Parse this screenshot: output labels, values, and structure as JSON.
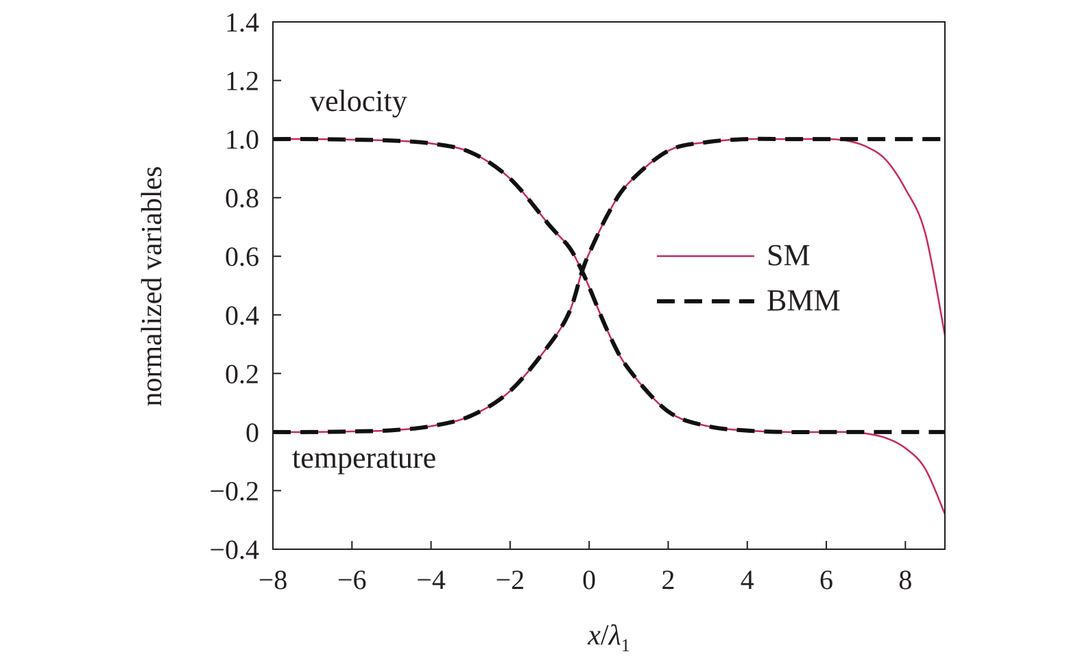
{
  "chart_data": {
    "type": "line",
    "xlabel": "x/λ1",
    "xlabel_parts": {
      "var": "x",
      "slash": "/",
      "sym": "λ",
      "sub": "1"
    },
    "ylabel": "normalized variables",
    "xlim": [
      -8,
      9
    ],
    "ylim": [
      -0.4,
      1.4
    ],
    "x_ticks": [
      -8,
      -6,
      -4,
      -2,
      0,
      2,
      4,
      6,
      8
    ],
    "x_tick_labels": [
      "−8",
      "−6",
      "−4",
      "−2",
      "0",
      "2",
      "4",
      "6",
      "8"
    ],
    "y_ticks": [
      -0.4,
      -0.2,
      0,
      0.2,
      0.4,
      0.6,
      0.8,
      1.0,
      1.2,
      1.4
    ],
    "y_tick_labels": [
      "−0.4",
      "−0.2",
      "0",
      "0.2",
      "0.4",
      "0.6",
      "0.8",
      "1.0",
      "1.2",
      "1.4"
    ],
    "grid": false,
    "legend": {
      "position": "center-right",
      "entries": [
        "SM",
        "BMM"
      ]
    },
    "annotations": {
      "velocity": "velocity",
      "temperature": "temperature"
    },
    "colors": {
      "SM": "#c8285a",
      "BMM": "#111111",
      "axes": "#231f20"
    },
    "series": [
      {
        "name": "SM",
        "style": "solid",
        "curves": [
          {
            "label": "velocity",
            "x": [
              -8,
              -7,
              -6,
              -5,
              -4,
              -3,
              -2,
              -1,
              -0.5,
              -0.2,
              0,
              0.5,
              1,
              2,
              3,
              4,
              5,
              6,
              6.5,
              7,
              7.5,
              8,
              8.5,
              9
            ],
            "y": [
              1.0,
              1.0,
              0.998,
              0.995,
              0.985,
              0.955,
              0.865,
              0.705,
              0.63,
              0.555,
              0.495,
              0.335,
              0.215,
              0.07,
              0.02,
              0.005,
              0.0,
              0.0,
              0.0,
              -0.005,
              -0.02,
              -0.055,
              -0.125,
              -0.28
            ]
          },
          {
            "label": "temperature",
            "x": [
              -8,
              -7,
              -6,
              -5,
              -4,
              -3,
              -2,
              -1,
              -0.5,
              -0.2,
              0,
              0.5,
              1,
              2,
              3,
              4,
              5,
              6,
              6.5,
              7,
              7.5,
              8,
              8.5,
              9
            ],
            "y": [
              0.0,
              0.0,
              0.002,
              0.006,
              0.02,
              0.055,
              0.14,
              0.3,
              0.41,
              0.54,
              0.61,
              0.75,
              0.85,
              0.96,
              0.99,
              1.0,
              1.0,
              1.0,
              0.995,
              0.975,
              0.93,
              0.83,
              0.68,
              0.33
            ]
          }
        ]
      },
      {
        "name": "BMM",
        "style": "dashed",
        "curves": [
          {
            "label": "velocity",
            "x": [
              -8,
              -7,
              -6,
              -5,
              -4,
              -3,
              -2,
              -1,
              -0.5,
              -0.2,
              0,
              0.5,
              1,
              2,
              3,
              4,
              5,
              6,
              7,
              8,
              9
            ],
            "y": [
              1.0,
              1.0,
              0.998,
              0.995,
              0.985,
              0.955,
              0.865,
              0.705,
              0.63,
              0.555,
              0.495,
              0.335,
              0.215,
              0.07,
              0.02,
              0.005,
              0.0,
              0.0,
              0.0,
              0.0,
              0.0
            ]
          },
          {
            "label": "temperature",
            "x": [
              -8,
              -7,
              -6,
              -5,
              -4,
              -3,
              -2,
              -1,
              -0.5,
              -0.2,
              0,
              0.5,
              1,
              2,
              3,
              4,
              5,
              6,
              7,
              8,
              9
            ],
            "y": [
              0.0,
              0.0,
              0.002,
              0.006,
              0.02,
              0.055,
              0.14,
              0.3,
              0.41,
              0.54,
              0.61,
              0.75,
              0.85,
              0.96,
              0.99,
              1.0,
              1.0,
              1.0,
              1.0,
              1.0,
              1.0
            ]
          }
        ]
      }
    ]
  }
}
